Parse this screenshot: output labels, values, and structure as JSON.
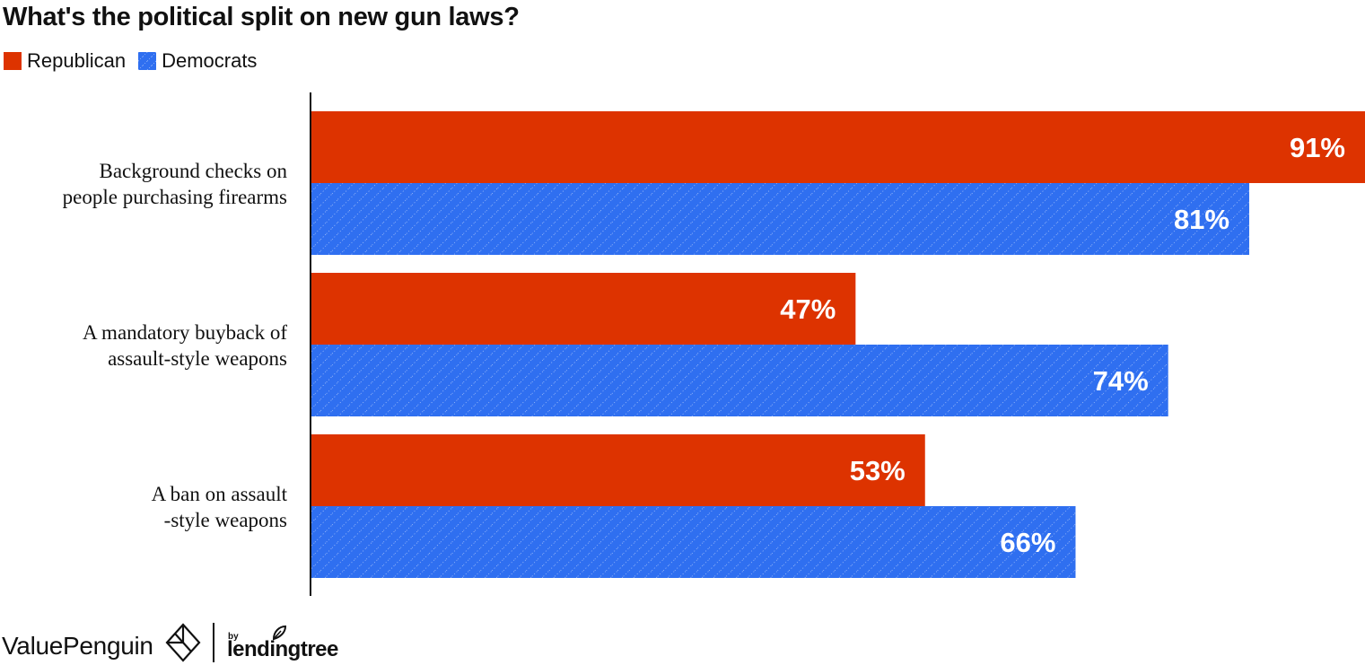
{
  "title": "What's the political split on new gun laws?",
  "colors": {
    "republican": "#dd3300",
    "democrats": "#2f6ff0",
    "label_text": "#ffffff",
    "axis": "#111111"
  },
  "legend": [
    {
      "name": "Republican",
      "color": "#dd3300",
      "pattern": "solid"
    },
    {
      "name": "Democrats",
      "color": "#2f6ff0",
      "pattern": "hatched"
    }
  ],
  "footer": {
    "brand": "ValuePenguin",
    "by": "by",
    "partner": "lendingtree",
    "icons": [
      "valuepenguin-logo-icon",
      "lendingtree-leaf-icon"
    ]
  },
  "chart_data": {
    "type": "bar",
    "orientation": "horizontal",
    "title": "What's the political split on new gun laws?",
    "categories": [
      [
        "Background checks on",
        "people purchasing firearms"
      ],
      [
        "A mandatory buyback of",
        "assault-style weapons"
      ],
      [
        "A ban on assault",
        "-style weapons"
      ]
    ],
    "series": [
      {
        "name": "Republican",
        "values": [
          91,
          47,
          53
        ],
        "labels": [
          "91%",
          "47%",
          "53%"
        ]
      },
      {
        "name": "Democrats",
        "values": [
          81,
          74,
          66
        ],
        "labels": [
          "81%",
          "74%",
          "66%"
        ]
      }
    ],
    "xlim": [
      0,
      91
    ],
    "grid": false,
    "legend_position": "top-left"
  }
}
